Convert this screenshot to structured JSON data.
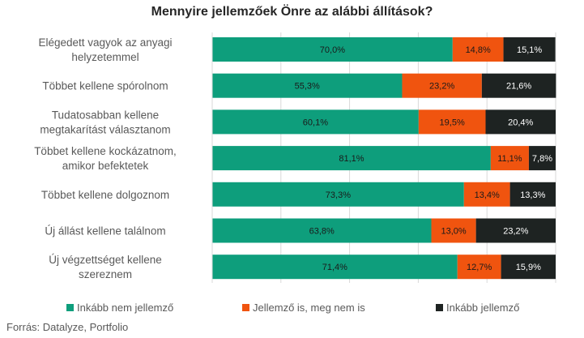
{
  "chart_data": {
    "type": "bar",
    "orientation": "horizontal",
    "stacked": true,
    "title": "Mennyire jellemzőek Önre az alábbi állítások?",
    "categories": [
      "Elégedett vagyok az anyagi helyzetemmel",
      "Többet kellene spórolnom",
      "Tudatosabban kellene megtakarítást választanom",
      "Többet kellene kockázatnom, amikor befektetek",
      "Többet kellene dolgoznom",
      "Új állást kellene találnom",
      "Új végzettséget kellene szereznem"
    ],
    "series": [
      {
        "name": "Inkább nem jellemző",
        "color": "#0e9e7c",
        "values": [
          70.0,
          55.3,
          60.1,
          81.1,
          73.3,
          63.8,
          71.4
        ],
        "labels": [
          "70,0%",
          "55,3%",
          "60,1%",
          "81,1%",
          "73,3%",
          "63,8%",
          "71,4%"
        ]
      },
      {
        "name": "Jellemző is, meg nem is",
        "color": "#f0540f",
        "values": [
          14.8,
          23.2,
          19.5,
          11.1,
          13.4,
          13.0,
          12.7
        ],
        "labels": [
          "14,8%",
          "23,2%",
          "19,5%",
          "11,1%",
          "13,4%",
          "13,0%",
          "12,7%"
        ]
      },
      {
        "name": "Inkább jellemző",
        "color": "#1e2322",
        "values": [
          15.1,
          21.6,
          20.4,
          7.8,
          13.3,
          23.2,
          15.9
        ],
        "labels": [
          "15,1%",
          "21,6%",
          "20,4%",
          "7,8%",
          "13,3%",
          "23,2%",
          "15,9%"
        ]
      }
    ],
    "xlim": [
      0,
      100
    ],
    "grid": true,
    "legend_position": "bottom"
  },
  "source": "Forrás: Datalyze, Portfolio"
}
